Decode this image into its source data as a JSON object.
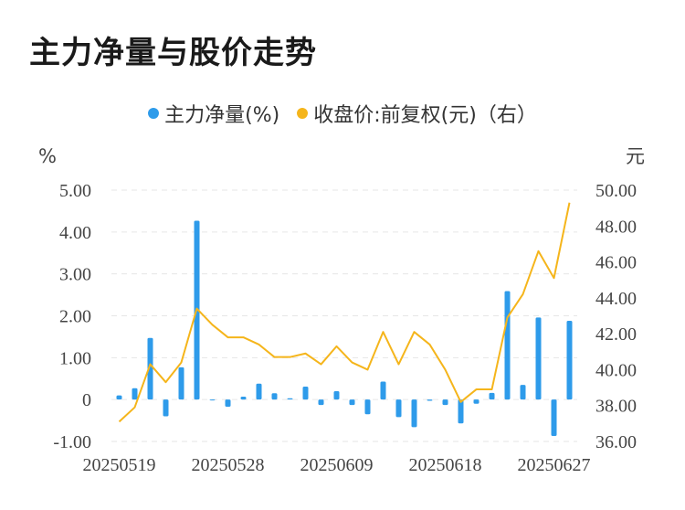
{
  "title": "主力净量与股价走势",
  "legend": [
    {
      "label": "主力净量(%)",
      "color": "#2e9bea"
    },
    {
      "label": "收盘价:前复权(元)（右）",
      "color": "#f5b51b"
    }
  ],
  "chart_data": {
    "type": "bar+line",
    "left_unit": "%",
    "right_unit": "元",
    "y_left": {
      "min": -1,
      "max": 5,
      "ticks": [
        "-1.00",
        "0",
        "1.00",
        "2.00",
        "3.00",
        "4.00",
        "5.00"
      ],
      "tick_values": [
        -1,
        0,
        1,
        2,
        3,
        4,
        5
      ]
    },
    "y_right": {
      "min": 36,
      "max": 50,
      "ticks": [
        "36.00",
        "38.00",
        "40.00",
        "42.00",
        "44.00",
        "46.00",
        "48.00",
        "50.00"
      ],
      "tick_values": [
        36,
        38,
        40,
        42,
        44,
        46,
        48,
        50
      ]
    },
    "x_labels": [
      {
        "index": 0,
        "label": "20250519"
      },
      {
        "index": 7,
        "label": "20250528"
      },
      {
        "index": 14,
        "label": "20250609"
      },
      {
        "index": 21,
        "label": "20250618"
      },
      {
        "index": 28,
        "label": "20250627"
      }
    ],
    "n_points": 30,
    "series": [
      {
        "name": "主力净量(%)",
        "type": "bar",
        "color": "#2e9bea",
        "values": [
          0.1,
          0.27,
          1.47,
          -0.4,
          0.77,
          4.27,
          0.0,
          -0.17,
          0.07,
          0.38,
          0.15,
          0.03,
          0.31,
          -0.13,
          0.2,
          -0.13,
          -0.35,
          0.43,
          -0.42,
          -0.66,
          -0.03,
          -0.13,
          -0.57,
          -0.1,
          0.16,
          2.59,
          0.35,
          1.96,
          -0.87,
          1.88
        ]
      },
      {
        "name": "收盘价:前复权(元)（右）",
        "type": "line",
        "color": "#f5b51b",
        "values": [
          37.1,
          37.9,
          40.3,
          39.3,
          40.4,
          43.4,
          42.5,
          41.8,
          41.8,
          41.4,
          40.7,
          40.7,
          40.9,
          40.3,
          41.3,
          40.4,
          40.0,
          42.1,
          40.3,
          42.1,
          41.4,
          40.0,
          38.2,
          38.9,
          38.9,
          42.9,
          44.2,
          46.6,
          45.1,
          49.3
        ]
      }
    ],
    "grid": true
  }
}
